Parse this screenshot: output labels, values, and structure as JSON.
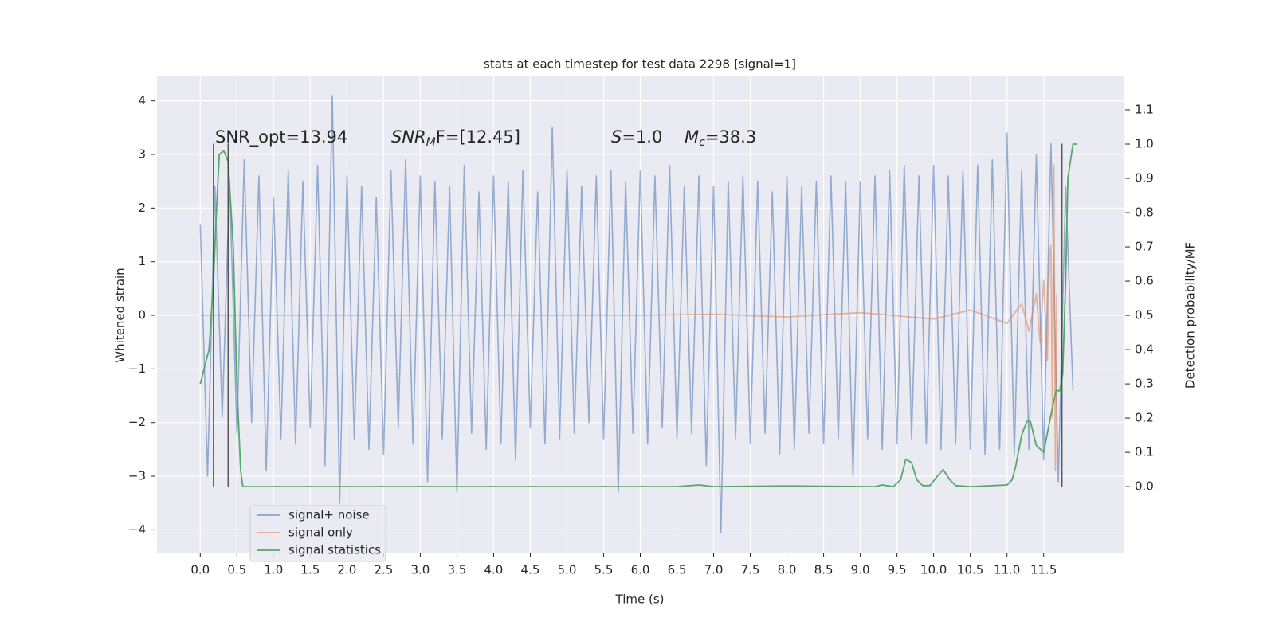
{
  "chart_data": {
    "type": "line",
    "title": "stats at each timestep for test data 2298 [signal=1]",
    "x_label": "Time (s)",
    "y_label": "Whitened strain",
    "y2_label": "Detection probability/MF",
    "xlim": [
      -0.59,
      12.59
    ],
    "ylim": [
      -4.44,
      4.47
    ],
    "y2lim": [
      -0.195,
      1.2
    ],
    "xticks": [
      {
        "value": 0,
        "label": "0.0"
      },
      0.5,
      {
        "value": 1,
        "label": "1.0"
      },
      1.5,
      {
        "value": 2,
        "label": "2.0"
      },
      2.5,
      {
        "value": 3,
        "label": "3.0"
      },
      3.5,
      {
        "value": 4,
        "label": "4.0"
      },
      4.5,
      {
        "value": 5,
        "label": "5.0"
      },
      5.5,
      {
        "value": 6,
        "label": "6.0"
      },
      6.5,
      {
        "value": 7,
        "label": "7.0"
      },
      7.5,
      {
        "value": 8,
        "label": "8.0"
      },
      8.5,
      {
        "value": 9,
        "label": "9.0"
      },
      9.5,
      {
        "value": 10,
        "label": "10.0"
      },
      10.5,
      {
        "value": 11,
        "label": "11.0"
      },
      11.5
    ],
    "yticks": [
      {
        "value": -4,
        "label": "−4"
      },
      {
        "value": -3,
        "label": "−3"
      },
      {
        "value": -2,
        "label": "−2"
      },
      {
        "value": -1,
        "label": "−1"
      },
      0,
      1,
      2,
      3,
      4
    ],
    "y2ticks": [
      {
        "value": 0,
        "label": "0.0"
      },
      0.1,
      0.2,
      0.3,
      0.4,
      0.5,
      0.6,
      0.7,
      0.8,
      0.9,
      {
        "value": 1,
        "label": "1.0"
      },
      1.1
    ],
    "grid": true,
    "legend": "lower left",
    "series": [
      {
        "name": "signal+ noise",
        "color": "#4c72b0",
        "x": [
          0.0,
          0.1,
          0.2,
          0.3,
          0.4,
          0.5,
          0.6,
          0.7,
          0.8,
          0.9,
          1.0,
          1.1,
          1.2,
          1.3,
          1.4,
          1.5,
          1.6,
          1.7,
          1.8,
          1.9,
          2.0,
          2.1,
          2.2,
          2.3,
          2.4,
          2.5,
          2.6,
          2.7,
          2.8,
          2.9,
          3.0,
          3.1,
          3.2,
          3.3,
          3.4,
          3.5,
          3.6,
          3.7,
          3.8,
          3.9,
          4.0,
          4.1,
          4.2,
          4.3,
          4.4,
          4.5,
          4.6,
          4.7,
          4.8,
          4.9,
          5.0,
          5.1,
          5.2,
          5.3,
          5.4,
          5.5,
          5.6,
          5.7,
          5.8,
          5.9,
          6.0,
          6.1,
          6.2,
          6.3,
          6.4,
          6.5,
          6.6,
          6.7,
          6.8,
          6.9,
          7.0,
          7.1,
          7.2,
          7.3,
          7.4,
          7.5,
          7.6,
          7.7,
          7.8,
          7.9,
          8.0,
          8.1,
          8.2,
          8.3,
          8.4,
          8.5,
          8.6,
          8.7,
          8.8,
          8.9,
          9.0,
          9.1,
          9.2,
          9.3,
          9.4,
          9.5,
          9.6,
          9.7,
          9.8,
          9.9,
          10.0,
          10.1,
          10.2,
          10.3,
          10.4,
          10.5,
          10.6,
          10.7,
          10.8,
          10.9,
          11.0,
          11.1,
          11.2,
          11.3,
          11.4,
          11.5,
          11.6,
          11.7,
          11.8,
          11.9
        ],
        "values": [
          1.7,
          -3.0,
          2.4,
          -1.9,
          2.5,
          -2.2,
          2.9,
          -2.0,
          2.6,
          -2.9,
          2.2,
          -2.3,
          2.7,
          -2.4,
          2.5,
          -2.1,
          2.8,
          -2.8,
          4.1,
          -3.5,
          2.6,
          -2.3,
          2.4,
          -2.5,
          2.2,
          -2.6,
          2.7,
          -2.1,
          2.9,
          -2.4,
          2.6,
          -3.1,
          2.5,
          -2.3,
          2.4,
          -3.3,
          2.8,
          -2.2,
          2.3,
          -2.5,
          2.6,
          -2.4,
          2.5,
          -2.7,
          2.7,
          -2.1,
          2.3,
          -2.4,
          3.5,
          -2.3,
          2.7,
          -2.2,
          2.4,
          -2.0,
          2.6,
          -2.3,
          2.7,
          -3.3,
          2.5,
          -2.2,
          2.7,
          -2.4,
          2.6,
          -2.1,
          2.8,
          -2.3,
          2.4,
          -2.2,
          2.6,
          -2.8,
          2.4,
          -4.05,
          2.5,
          -2.3,
          2.6,
          -2.4,
          2.5,
          -2.2,
          2.3,
          -2.6,
          2.6,
          -2.5,
          2.4,
          -2.2,
          2.5,
          -2.4,
          2.6,
          -2.3,
          2.5,
          -3.0,
          2.5,
          -2.3,
          2.6,
          -2.5,
          2.7,
          -2.4,
          2.8,
          -2.3,
          2.6,
          -2.4,
          2.8,
          -2.5,
          2.6,
          -2.4,
          2.7,
          -2.5,
          2.8,
          -2.6,
          2.9,
          -2.5,
          3.4,
          -2.6,
          2.7,
          -2.5,
          3.0,
          -2.7,
          3.2,
          -3.1,
          2.4,
          -1.4
        ]
      },
      {
        "name": "signal only",
        "color": "#dd8452",
        "x": [
          0.0,
          6.0,
          7.0,
          8.0,
          9.0,
          10.0,
          10.5,
          11.0,
          11.2,
          11.3,
          11.4,
          11.45,
          11.5,
          11.55,
          11.58,
          11.6,
          11.62,
          11.64,
          11.66,
          11.68
        ],
        "values": [
          0,
          0,
          0.02,
          -0.03,
          0.05,
          -0.07,
          0.1,
          -0.15,
          0.22,
          -0.3,
          0.4,
          -0.5,
          0.65,
          -0.85,
          1.1,
          1.3,
          -1.9,
          2.8,
          -2.9,
          0.4
        ]
      },
      {
        "name": "signal statistics",
        "color": "#55a868",
        "axis": "y2",
        "x": [
          0.0,
          0.12,
          0.18,
          0.22,
          0.26,
          0.32,
          0.38,
          0.45,
          0.5,
          0.55,
          0.58,
          1.0,
          6.5,
          6.8,
          7.0,
          8.0,
          9.2,
          9.3,
          9.45,
          9.55,
          9.62,
          9.7,
          9.77,
          9.85,
          9.95,
          10.05,
          10.13,
          10.22,
          10.3,
          10.5,
          11.0,
          11.07,
          11.12,
          11.2,
          11.27,
          11.32,
          11.4,
          11.5,
          11.6,
          11.67,
          11.72,
          11.76,
          11.8,
          11.83,
          11.9,
          11.96
        ],
        "values": [
          0.3,
          0.4,
          0.6,
          0.8,
          0.97,
          0.98,
          0.95,
          0.7,
          0.3,
          0.05,
          0.0,
          0.0,
          0.0,
          0.005,
          0.0,
          0.002,
          0.0,
          0.005,
          0.0,
          0.02,
          0.08,
          0.07,
          0.02,
          0.003,
          0.003,
          0.03,
          0.05,
          0.02,
          0.003,
          0.0,
          0.005,
          0.02,
          0.06,
          0.15,
          0.19,
          0.19,
          0.12,
          0.1,
          0.21,
          0.28,
          0.28,
          0.33,
          0.6,
          0.9,
          1.0,
          1.0
        ]
      }
    ],
    "vlines": {
      "x": [
        0.18,
        0.38,
        11.75
      ],
      "ymin": -3.2,
      "ymax": 3.2,
      "color": "#333333"
    },
    "annotations": [
      {
        "rest": "SNR_opt=13.94"
      },
      {
        "base": "SNR",
        "sub": "M",
        "rest": "F=[12.45]"
      },
      {
        "base": "S",
        "rest": "=1.0"
      },
      {
        "base": "M",
        "sub": "c",
        "rest": "=38.3"
      }
    ]
  }
}
